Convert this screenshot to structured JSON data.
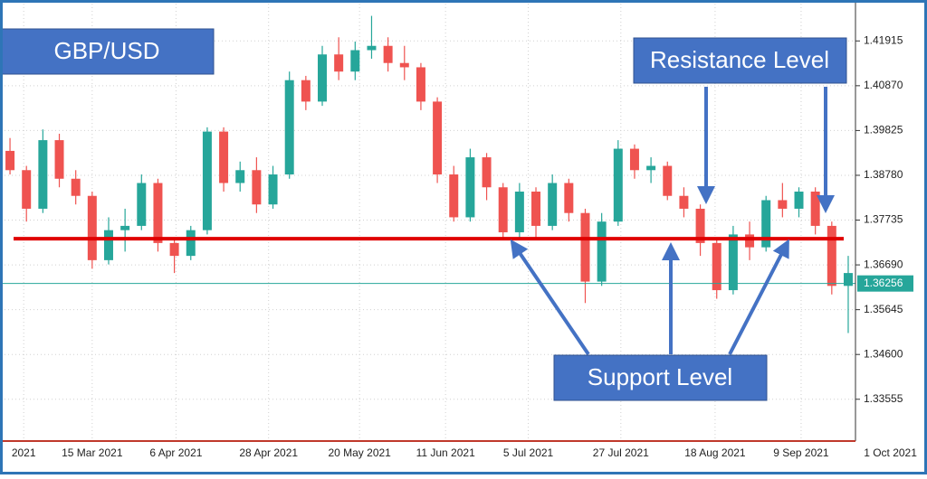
{
  "chart_data": {
    "type": "candlestick",
    "title": "GBP/USD",
    "annotations": {
      "resistance": "Resistance Level",
      "support": "Support Level"
    },
    "support_level": 1.373,
    "current_price": 1.36256,
    "x": [
      0,
      3,
      6,
      9,
      12,
      15,
      18,
      21,
      24,
      27,
      30,
      33,
      36,
      39,
      42,
      45,
      48,
      51,
      54,
      57,
      60,
      63,
      66,
      69,
      72,
      75,
      78,
      81,
      84,
      87,
      90,
      93,
      96,
      99,
      102,
      105,
      108,
      111,
      114,
      117,
      120,
      123,
      126,
      129,
      132,
      135,
      138,
      141,
      144,
      147,
      150,
      153
    ],
    "open": [
      1.3935,
      1.389,
      1.38,
      1.396,
      1.387,
      1.383,
      1.368,
      1.375,
      1.376,
      1.386,
      1.372,
      1.369,
      1.375,
      1.398,
      1.386,
      1.389,
      1.381,
      1.388,
      1.41,
      1.405,
      1.416,
      1.412,
      1.417,
      1.418,
      1.414,
      1.413,
      1.405,
      1.388,
      1.378,
      1.392,
      1.385,
      1.3745,
      1.384,
      1.376,
      1.386,
      1.379,
      1.363,
      1.377,
      1.394,
      1.389,
      1.39,
      1.383,
      1.38,
      1.372,
      1.361,
      1.374,
      1.371,
      1.382,
      1.38,
      1.384,
      1.376,
      1.362
    ],
    "high": [
      1.3965,
      1.39,
      1.3985,
      1.3975,
      1.389,
      1.384,
      1.378,
      1.38,
      1.388,
      1.387,
      1.373,
      1.376,
      1.399,
      1.399,
      1.391,
      1.392,
      1.39,
      1.412,
      1.411,
      1.418,
      1.42,
      1.419,
      1.425,
      1.42,
      1.418,
      1.414,
      1.406,
      1.39,
      1.394,
      1.393,
      1.386,
      1.386,
      1.385,
      1.388,
      1.387,
      1.38,
      1.379,
      1.396,
      1.395,
      1.392,
      1.391,
      1.385,
      1.381,
      1.373,
      1.376,
      1.377,
      1.383,
      1.386,
      1.385,
      1.385,
      1.377,
      1.369
    ],
    "low": [
      1.388,
      1.377,
      1.379,
      1.385,
      1.381,
      1.366,
      1.367,
      1.37,
      1.375,
      1.37,
      1.365,
      1.368,
      1.374,
      1.384,
      1.384,
      1.379,
      1.38,
      1.387,
      1.403,
      1.404,
      1.41,
      1.41,
      1.415,
      1.412,
      1.41,
      1.403,
      1.386,
      1.377,
      1.377,
      1.382,
      1.373,
      1.373,
      1.373,
      1.375,
      1.377,
      1.358,
      1.362,
      1.376,
      1.387,
      1.386,
      1.382,
      1.378,
      1.369,
      1.359,
      1.36,
      1.368,
      1.37,
      1.378,
      1.378,
      1.374,
      1.36,
      1.351
    ],
    "close": [
      1.389,
      1.38,
      1.396,
      1.387,
      1.383,
      1.368,
      1.375,
      1.376,
      1.386,
      1.372,
      1.369,
      1.375,
      1.398,
      1.386,
      1.389,
      1.381,
      1.388,
      1.41,
      1.405,
      1.416,
      1.412,
      1.417,
      1.418,
      1.414,
      1.413,
      1.405,
      1.388,
      1.378,
      1.392,
      1.385,
      1.3745,
      1.384,
      1.376,
      1.386,
      1.379,
      1.363,
      1.377,
      1.394,
      1.389,
      1.39,
      1.383,
      1.38,
      1.372,
      1.361,
      1.374,
      1.371,
      1.382,
      1.38,
      1.384,
      1.376,
      1.362,
      1.365
    ],
    "up_color": "#26a69a",
    "down_color": "#ef5350",
    "xlim": [
      -1,
      153.5
    ],
    "xticks": [
      {
        "value": 2.5,
        "label": "2021"
      },
      {
        "value": 15,
        "label": "15 Mar 2021"
      },
      {
        "value": 30.3,
        "label": "6 Apr 2021"
      },
      {
        "value": 47.2,
        "label": "28 Apr 2021"
      },
      {
        "value": 63.8,
        "label": "20 May 2021"
      },
      {
        "value": 79.5,
        "label": "11 Jun 2021"
      },
      {
        "value": 94.6,
        "label": "5 Jul 2021"
      },
      {
        "value": 111.5,
        "label": "27 Jul 2021"
      },
      {
        "value": 128.7,
        "label": "18 Aug 2021"
      },
      {
        "value": 144.4,
        "label": "9 Sep 2021"
      },
      {
        "value": 160.7,
        "label": "1 Oct 2021"
      }
    ],
    "ylim": [
      1.3258,
      1.4287
    ],
    "yticks": [
      1.41915,
      {
        "value": 1.4087,
        "label": "1.40870"
      },
      1.39825,
      {
        "value": 1.3878,
        "label": "1.38780"
      },
      1.37735,
      {
        "value": 1.3669,
        "label": "1.36690"
      },
      1.35645,
      {
        "value": 1.346,
        "label": "1.34600"
      },
      1.33555
    ],
    "grid": true
  }
}
